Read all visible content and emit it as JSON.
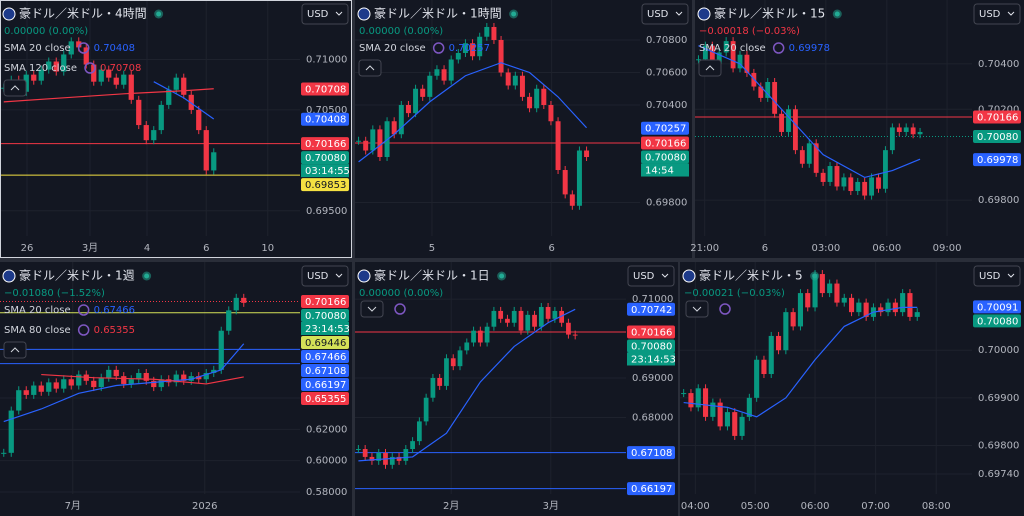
{
  "chart_data": [
    {
      "type": "candlestick",
      "title": "豪ドル／米ドル・4時間",
      "currency": "USD",
      "change": "0.00000 (0.00%)",
      "change_color": "#089981",
      "selected": true,
      "ylim": [
        0.6925,
        0.7159
      ],
      "yticks": [
        {
          "value": 0.71,
          "label": "0.71000"
        },
        {
          "value": 0.705,
          "label": "0.70500"
        },
        {
          "value": 0.695,
          "label": "0.69500"
        }
      ],
      "xlim": [
        0,
        40
      ],
      "xticks": [
        {
          "value": 3.6,
          "label": "26"
        },
        {
          "value": 12,
          "label": "3月"
        },
        {
          "value": 19.6,
          "label": "4"
        },
        {
          "value": 27.5,
          "label": "6"
        },
        {
          "value": 35.7,
          "label": "10"
        }
      ],
      "values": [
        0.7072,
        0.708,
        0.7068,
        0.7085,
        0.7079,
        0.709,
        0.7098,
        0.7088,
        0.7105,
        0.7118,
        0.7112,
        0.7095,
        0.7078,
        0.709,
        0.7082,
        0.7075,
        0.7085,
        0.706,
        0.7035,
        0.702,
        0.703,
        0.7055,
        0.707,
        0.7082,
        0.7065,
        0.705,
        0.703,
        0.699,
        0.7008
      ],
      "series": [
        {
          "name": "SMA 20 close",
          "color": "#2962ff",
          "legend_value": 0.70408,
          "x": [
            20,
            24,
            28
          ],
          "values": [
            0.7078,
            0.7062,
            0.7041
          ]
        },
        {
          "name": "SMA 120 close",
          "color": "#f23645",
          "legend_value": 0.70708,
          "x": [
            0,
            8,
            16,
            24,
            28
          ],
          "values": [
            0.7058,
            0.7062,
            0.7066,
            0.7069,
            0.7071
          ]
        }
      ],
      "price_labels": [
        {
          "value": 0.70708,
          "color": "#f23645"
        },
        {
          "value": 0.70408,
          "color": "#2962ff"
        },
        {
          "value": 0.70166,
          "color": "#f23645",
          "line": "solid"
        },
        {
          "value": 0.7008,
          "label": "0.70080",
          "color": "#089981",
          "countdown": "03:14:55"
        },
        {
          "value": 0.69853,
          "color": "#f5e142",
          "line": "solid"
        }
      ]
    },
    {
      "type": "candlestick",
      "title": "豪ドル／米ドル・1時間",
      "currency": "USD",
      "change": "0.00000 (0.00%)",
      "change_color": "#089981",
      "ylim": [
        0.69594,
        0.71046
      ],
      "yticks": [
        {
          "value": 0.708,
          "label": "0.70800"
        },
        {
          "value": 0.706,
          "label": "0.70600"
        },
        {
          "value": 0.704,
          "label": "0.70400"
        },
        {
          "value": 0.698,
          "label": "0.69800"
        }
      ],
      "xlim": [
        0,
        40
      ],
      "xticks": [
        {
          "value": 10.8,
          "label": "5"
        },
        {
          "value": 27.6,
          "label": "6"
        }
      ],
      "values": [
        0.7018,
        0.7012,
        0.7025,
        0.7008,
        0.703,
        0.7022,
        0.704,
        0.7035,
        0.705,
        0.7045,
        0.7058,
        0.7062,
        0.7055,
        0.7068,
        0.7072,
        0.7078,
        0.707,
        0.7082,
        0.7088,
        0.708,
        0.706,
        0.7052,
        0.7058,
        0.7045,
        0.7038,
        0.705,
        0.704,
        0.703,
        0.7,
        0.6985,
        0.6978,
        0.7012,
        0.7008
      ],
      "series": [
        {
          "name": "SMA 20 close",
          "color": "#2962ff",
          "legend_value": 0.70257,
          "x": [
            0,
            5,
            10,
            15,
            20,
            24,
            28,
            32
          ],
          "values": [
            0.7005,
            0.7022,
            0.7042,
            0.7058,
            0.7066,
            0.706,
            0.7045,
            0.7026
          ]
        }
      ],
      "price_labels": [
        {
          "value": 0.70257,
          "color": "#2962ff"
        },
        {
          "value": 0.70166,
          "color": "#f23645",
          "line": "solid"
        },
        {
          "value": 0.7008,
          "label": "0.70080",
          "color": "#089981",
          "countdown": "14:54"
        }
      ]
    },
    {
      "type": "candlestick",
      "title": "豪ドル／米ドル・15",
      "currency": "USD",
      "change": "−0.00018 (−0.03%)",
      "change_color": "#f23645",
      "ylim": [
        0.69642,
        0.70681
      ],
      "yticks": [
        {
          "value": 0.704,
          "label": "0.70400"
        },
        {
          "value": 0.702,
          "label": "0.70200"
        },
        {
          "value": 0.698,
          "label": "0.69800"
        }
      ],
      "xlim": [
        0,
        40
      ],
      "xticks": [
        {
          "value": 1.4,
          "label": "21:00"
        },
        {
          "value": 10.1,
          "label": "6"
        },
        {
          "value": 18.9,
          "label": "03:00"
        },
        {
          "value": 27.7,
          "label": "06:00"
        },
        {
          "value": 36.4,
          "label": "09:00"
        }
      ],
      "values": [
        0.7042,
        0.7048,
        0.704,
        0.7045,
        0.705,
        0.7038,
        0.7044,
        0.7036,
        0.703,
        0.7025,
        0.7032,
        0.7018,
        0.701,
        0.702,
        0.7002,
        0.6996,
        0.7005,
        0.6992,
        0.6988,
        0.6995,
        0.6986,
        0.699,
        0.6984,
        0.6988,
        0.6982,
        0.699,
        0.6985,
        0.7002,
        0.7012,
        0.701,
        0.7012,
        0.7009,
        0.701
      ],
      "series": [
        {
          "name": "SMA 20 close",
          "color": "#2962ff",
          "legend_value": 0.69978,
          "x": [
            0,
            6,
            12,
            18,
            24,
            28,
            32
          ],
          "values": [
            0.7048,
            0.704,
            0.702,
            0.7,
            0.699,
            0.6993,
            0.6998
          ]
        }
      ],
      "price_labels": [
        {
          "value": 0.70166,
          "color": "#f23645",
          "line": "solid"
        },
        {
          "value": 0.7008,
          "label": "0.70080",
          "color": "#089981",
          "line": "dotted"
        },
        {
          "value": 0.69978,
          "color": "#2962ff"
        }
      ]
    },
    {
      "type": "candlestick",
      "title": "豪ドル／米ドル・1週",
      "currency": "USD",
      "change": "−0.01080 (−1.52%)",
      "change_color": "#089981",
      "ylim": [
        0.5787,
        0.7269
      ],
      "yticks": [
        {
          "value": 0.64,
          "label": "0.64000"
        },
        {
          "value": 0.62,
          "label": "0.62000"
        },
        {
          "value": 0.6,
          "label": "0.60000"
        },
        {
          "value": 0.58,
          "label": "0.58000"
        }
      ],
      "xlim": [
        0,
        40
      ],
      "xticks": [
        {
          "value": 9.7,
          "label": "7月"
        },
        {
          "value": 27.3,
          "label": "2026"
        }
      ],
      "values": [
        0.605,
        0.632,
        0.645,
        0.642,
        0.648,
        0.644,
        0.65,
        0.646,
        0.652,
        0.648,
        0.655,
        0.651,
        0.647,
        0.653,
        0.658,
        0.654,
        0.649,
        0.652,
        0.656,
        0.651,
        0.647,
        0.652,
        0.65,
        0.655,
        0.651,
        0.654,
        0.652,
        0.656,
        0.658,
        0.683,
        0.696,
        0.704,
        0.7008
      ],
      "series": [
        {
          "name": "SMA 20 close",
          "color": "#2962ff",
          "legend_value": 0.67466,
          "x": [
            0,
            5,
            10,
            15,
            20,
            25,
            29,
            32
          ],
          "values": [
            0.625,
            0.633,
            0.643,
            0.648,
            0.65,
            0.652,
            0.658,
            0.6747
          ]
        },
        {
          "name": "SMA 80 close",
          "color": "#f23645",
          "legend_value": 0.65355,
          "x": [
            5,
            12,
            20,
            27,
            32
          ],
          "values": [
            0.655,
            0.653,
            0.652,
            0.649,
            0.6535
          ]
        }
      ],
      "price_labels": [
        {
          "value": 0.70166,
          "color": "#f23645",
          "line": "dotted"
        },
        {
          "value": 0.7008,
          "label": "0.70080",
          "color": "#089981",
          "countdown": "23:14:53"
        },
        {
          "value": 0.69446,
          "color": "#d4e157",
          "line": "solid"
        },
        {
          "value": 0.67466,
          "color": "#2962ff"
        },
        {
          "value": 0.67108,
          "color": "#2962ff",
          "line": "solid"
        },
        {
          "value": 0.66197,
          "color": "#2962ff",
          "line": "solid"
        },
        {
          "value": 0.65355,
          "color": "#f23645"
        }
      ]
    },
    {
      "type": "candlestick",
      "title": "豪ドル／米ドル・1日",
      "currency": "USD",
      "change": "0.00000 (0.00%)",
      "change_color": "#089981",
      "ylim": [
        0.6606,
        0.7194
      ],
      "yticks": [
        {
          "value": 0.71,
          "label": "0.71000"
        },
        {
          "value": 0.69,
          "label": "0.69000"
        },
        {
          "value": 0.68,
          "label": "0.68000"
        }
      ],
      "xlim": [
        0,
        40
      ],
      "xticks": [
        {
          "value": 14.2,
          "label": "2月"
        },
        {
          "value": 28.9,
          "label": "3月"
        }
      ],
      "values": [
        0.672,
        0.67,
        0.669,
        0.671,
        0.668,
        0.67,
        0.669,
        0.672,
        0.674,
        0.679,
        0.685,
        0.69,
        0.688,
        0.695,
        0.693,
        0.697,
        0.699,
        0.702,
        0.699,
        0.703,
        0.707,
        0.705,
        0.704,
        0.707,
        0.702,
        0.706,
        0.703,
        0.708,
        0.705,
        0.707,
        0.704,
        0.701,
        0.7008
      ],
      "series": [
        {
          "color": "#2962ff",
          "x": [
            0,
            8,
            13,
            18,
            23,
            28,
            32
          ],
          "values": [
            0.669,
            0.67,
            0.676,
            0.689,
            0.698,
            0.704,
            0.7074
          ]
        }
      ],
      "price_labels": [
        {
          "value": 0.70742,
          "color": "#2962ff"
        },
        {
          "value": 0.70166,
          "color": "#f23645",
          "line": "solid"
        },
        {
          "value": 0.7008,
          "label": "0.70080",
          "color": "#089981",
          "countdown": "23:14:53"
        },
        {
          "value": 0.67108,
          "color": "#2962ff",
          "line": "solid"
        },
        {
          "value": 0.66197,
          "color": "#2962ff",
          "line": "solid"
        }
      ]
    },
    {
      "type": "candlestick",
      "title": "豪ドル／米ドル・5",
      "currency": "USD",
      "change": "−0.00021 (−0.03%)",
      "change_color": "#089981",
      "ylim": [
        0.69698,
        0.701853
      ],
      "yticks": [
        {
          "value": 0.7,
          "label": "0.70000"
        },
        {
          "value": 0.699,
          "label": "0.69900"
        },
        {
          "value": 0.698,
          "label": "0.69800"
        },
        {
          "value": 0.6974,
          "label": "0.69740"
        }
      ],
      "xlim": [
        0,
        40
      ],
      "xticks": [
        {
          "value": 2.1,
          "label": "04:00"
        },
        {
          "value": 10.3,
          "label": "05:00"
        },
        {
          "value": 18.5,
          "label": "06:00"
        },
        {
          "value": 26.8,
          "label": "07:00"
        },
        {
          "value": 35.1,
          "label": "08:00"
        }
      ],
      "values": [
        0.6991,
        0.6988,
        0.6992,
        0.6986,
        0.6989,
        0.6984,
        0.6987,
        0.6982,
        0.6986,
        0.699,
        0.6998,
        0.6995,
        0.7003,
        0.7,
        0.7008,
        0.7005,
        0.7012,
        0.7009,
        0.7016,
        0.7012,
        0.7014,
        0.701,
        0.7011,
        0.7008,
        0.701,
        0.7007,
        0.7009,
        0.7008,
        0.701,
        0.7008,
        0.7012,
        0.7007,
        0.7008
      ],
      "series": [
        {
          "color": "#2962ff",
          "x": [
            0,
            6,
            10,
            14,
            18,
            22,
            26,
            30,
            32
          ],
          "values": [
            0.6989,
            0.6988,
            0.6986,
            0.699,
            0.6998,
            0.7005,
            0.7008,
            0.7009,
            0.7009
          ]
        }
      ],
      "price_labels": [
        {
          "value": 0.70091,
          "color": "#2962ff"
        },
        {
          "value": 0.7008,
          "label": "0.70080",
          "color": "#089981"
        }
      ]
    }
  ]
}
